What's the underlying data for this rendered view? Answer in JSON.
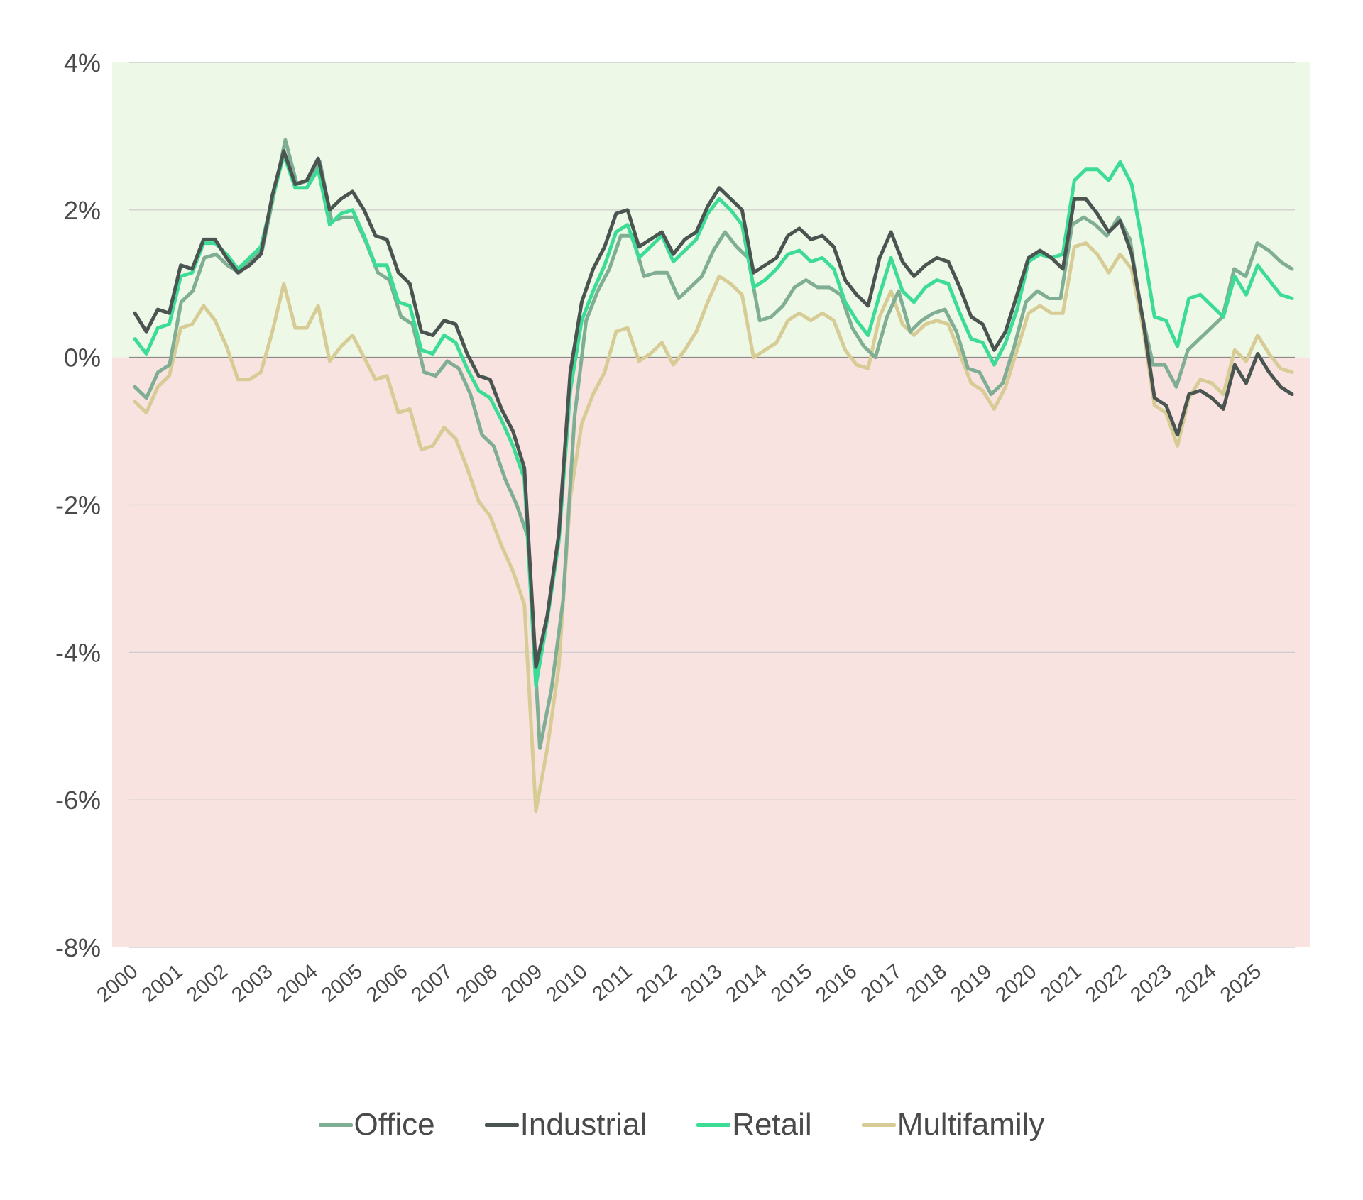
{
  "chart_data": {
    "type": "line",
    "title": "",
    "xlabel": "",
    "ylabel": "",
    "ylim": [
      -8,
      4
    ],
    "y_ticks": [
      {
        "value": 4,
        "label": "4%"
      },
      {
        "value": 2,
        "label": "2%"
      },
      {
        "value": 0,
        "label": "0%"
      },
      {
        "value": -2,
        "label": "-2%"
      },
      {
        "value": -4,
        "label": "-4%"
      },
      {
        "value": -6,
        "label": "-6%"
      },
      {
        "value": -8,
        "label": "-8%"
      }
    ],
    "xlim": [
      2000,
      2025.75
    ],
    "x_ticks": [
      {
        "value": 2000,
        "label": "2000"
      },
      {
        "value": 2001,
        "label": "2001"
      },
      {
        "value": 2002,
        "label": "2002"
      },
      {
        "value": 2003,
        "label": "2003"
      },
      {
        "value": 2004,
        "label": "2004"
      },
      {
        "value": 2005,
        "label": "2005"
      },
      {
        "value": 2006,
        "label": "2006"
      },
      {
        "value": 2007,
        "label": "2007"
      },
      {
        "value": 2008,
        "label": "2008"
      },
      {
        "value": 2009,
        "label": "2009"
      },
      {
        "value": 2010,
        "label": "2010"
      },
      {
        "value": 2011,
        "label": "2011"
      },
      {
        "value": 2012,
        "label": "2012"
      },
      {
        "value": 2013,
        "label": "2013"
      },
      {
        "value": 2014,
        "label": "2014"
      },
      {
        "value": 2015,
        "label": "2015"
      },
      {
        "value": 2016,
        "label": "2016"
      },
      {
        "value": 2017,
        "label": "2017"
      },
      {
        "value": 2018,
        "label": "2018"
      },
      {
        "value": 2019,
        "label": "2019"
      },
      {
        "value": 2020,
        "label": "2020"
      },
      {
        "value": 2021,
        "label": "2021"
      },
      {
        "value": 2022,
        "label": "2022"
      },
      {
        "value": 2023,
        "label": "2023"
      },
      {
        "value": 2024,
        "label": "2024"
      },
      {
        "value": 2025,
        "label": "2025"
      }
    ],
    "grid": true,
    "bands": [
      {
        "from": 0,
        "to": 4,
        "color": "#eef8e6"
      },
      {
        "from": -8,
        "to": 0,
        "color": "#f8e3e1"
      }
    ],
    "legend_position": "bottom",
    "series": [
      {
        "name": "Office",
        "color": "#7fae94",
        "values": [
          -0.4,
          -0.55,
          -0.2,
          -0.1,
          0.75,
          0.9,
          1.35,
          1.4,
          1.25,
          1.15,
          1.3,
          1.45,
          2.2,
          2.95,
          2.35,
          2.4,
          2.65,
          1.85,
          1.9,
          1.9,
          1.55,
          1.15,
          1.05,
          0.55,
          0.45,
          -0.2,
          -0.25,
          -0.05,
          -0.15,
          -0.5,
          -1.05,
          -1.2,
          -1.65,
          -2.0,
          -2.45,
          -5.3,
          -4.5,
          -3.3,
          -0.8,
          0.5,
          0.9,
          1.2,
          1.65,
          1.65,
          1.1,
          1.15,
          1.15,
          0.8,
          0.95,
          1.1,
          1.45,
          1.7,
          1.5,
          1.35,
          0.5,
          0.55,
          0.7,
          0.95,
          1.05,
          0.95,
          0.95,
          0.85,
          0.4,
          0.15,
          0.0,
          0.55,
          0.9,
          0.35,
          0.5,
          0.6,
          0.65,
          0.35,
          -0.15,
          -0.2,
          -0.5,
          -0.35,
          0.15,
          0.75,
          0.9,
          0.8,
          0.8,
          1.8,
          1.9,
          1.8,
          1.65,
          1.9,
          1.6,
          0.6,
          -0.1,
          -0.1,
          -0.4,
          0.1,
          0.25,
          0.4,
          0.55,
          1.2,
          1.1,
          1.55,
          1.45,
          1.3,
          1.2
        ]
      },
      {
        "name": "Industrial",
        "color": "#4a5450",
        "values": [
          0.6,
          0.35,
          0.65,
          0.6,
          1.25,
          1.2,
          1.6,
          1.6,
          1.35,
          1.15,
          1.25,
          1.4,
          2.2,
          2.8,
          2.35,
          2.4,
          2.7,
          2.0,
          2.15,
          2.25,
          2.0,
          1.65,
          1.6,
          1.15,
          1.0,
          0.35,
          0.3,
          0.5,
          0.45,
          0.05,
          -0.25,
          -0.3,
          -0.7,
          -1.0,
          -1.5,
          -4.2,
          -3.5,
          -2.4,
          -0.2,
          0.75,
          1.2,
          1.5,
          1.95,
          2.0,
          1.5,
          1.6,
          1.7,
          1.4,
          1.6,
          1.7,
          2.05,
          2.3,
          2.15,
          2.0,
          1.15,
          1.25,
          1.35,
          1.65,
          1.75,
          1.6,
          1.65,
          1.5,
          1.05,
          0.85,
          0.7,
          1.35,
          1.7,
          1.3,
          1.1,
          1.25,
          1.35,
          1.3,
          0.95,
          0.55,
          0.45,
          0.1,
          0.35,
          0.85,
          1.35,
          1.45,
          1.35,
          1.2,
          2.15,
          2.15,
          1.95,
          1.7,
          1.85,
          1.4,
          0.5,
          -0.55,
          -0.65,
          -1.05,
          -0.5,
          -0.45,
          -0.55,
          -0.7,
          -0.1,
          -0.35,
          0.05,
          -0.2,
          -0.4,
          -0.5
        ]
      },
      {
        "name": "Retail",
        "color": "#3ddc96",
        "values": [
          0.25,
          0.05,
          0.4,
          0.45,
          1.1,
          1.15,
          1.55,
          1.55,
          1.4,
          1.2,
          1.35,
          1.5,
          2.15,
          2.75,
          2.3,
          2.3,
          2.55,
          1.8,
          1.95,
          2.0,
          1.65,
          1.25,
          1.25,
          0.75,
          0.7,
          0.1,
          0.05,
          0.3,
          0.2,
          -0.15,
          -0.45,
          -0.55,
          -0.85,
          -1.2,
          -1.65,
          -4.45,
          -3.55,
          -2.5,
          -0.45,
          0.5,
          0.9,
          1.25,
          1.7,
          1.8,
          1.35,
          1.5,
          1.65,
          1.3,
          1.45,
          1.6,
          1.95,
          2.15,
          2.0,
          1.8,
          0.95,
          1.05,
          1.2,
          1.4,
          1.45,
          1.3,
          1.35,
          1.2,
          0.75,
          0.5,
          0.3,
          0.85,
          1.35,
          0.9,
          0.75,
          0.95,
          1.05,
          1.0,
          0.6,
          0.25,
          0.2,
          -0.1,
          0.2,
          0.65,
          1.3,
          1.4,
          1.35,
          1.4,
          2.4,
          2.55,
          2.55,
          2.4,
          2.65,
          2.35,
          1.5,
          0.55,
          0.5,
          0.15,
          0.8,
          0.85,
          0.7,
          0.55,
          1.1,
          0.85,
          1.25,
          1.05,
          0.85,
          0.8
        ]
      },
      {
        "name": "Multifamily",
        "color": "#d8cc96",
        "values": [
          -0.6,
          -0.75,
          -0.4,
          -0.25,
          0.4,
          0.45,
          0.7,
          0.5,
          0.15,
          -0.3,
          -0.3,
          -0.2,
          0.35,
          1.0,
          0.4,
          0.4,
          0.7,
          -0.05,
          0.15,
          0.3,
          0.0,
          -0.3,
          -0.25,
          -0.75,
          -0.7,
          -1.25,
          -1.2,
          -0.95,
          -1.1,
          -1.5,
          -1.95,
          -2.15,
          -2.55,
          -2.9,
          -3.35,
          -6.15,
          -5.3,
          -4.2,
          -1.9,
          -0.9,
          -0.5,
          -0.2,
          0.35,
          0.4,
          -0.05,
          0.05,
          0.2,
          -0.1,
          0.1,
          0.35,
          0.75,
          1.1,
          1.0,
          0.85,
          0.0,
          0.1,
          0.2,
          0.5,
          0.6,
          0.5,
          0.6,
          0.5,
          0.1,
          -0.1,
          -0.15,
          0.55,
          0.9,
          0.45,
          0.3,
          0.45,
          0.5,
          0.45,
          0.05,
          -0.35,
          -0.45,
          -0.7,
          -0.4,
          0.1,
          0.6,
          0.7,
          0.6,
          0.6,
          1.5,
          1.55,
          1.4,
          1.15,
          1.4,
          1.2,
          0.4,
          -0.65,
          -0.75,
          -1.2,
          -0.55,
          -0.3,
          -0.35,
          -0.5,
          0.1,
          -0.05,
          0.3,
          0.05,
          -0.15,
          -0.2
        ]
      }
    ]
  }
}
